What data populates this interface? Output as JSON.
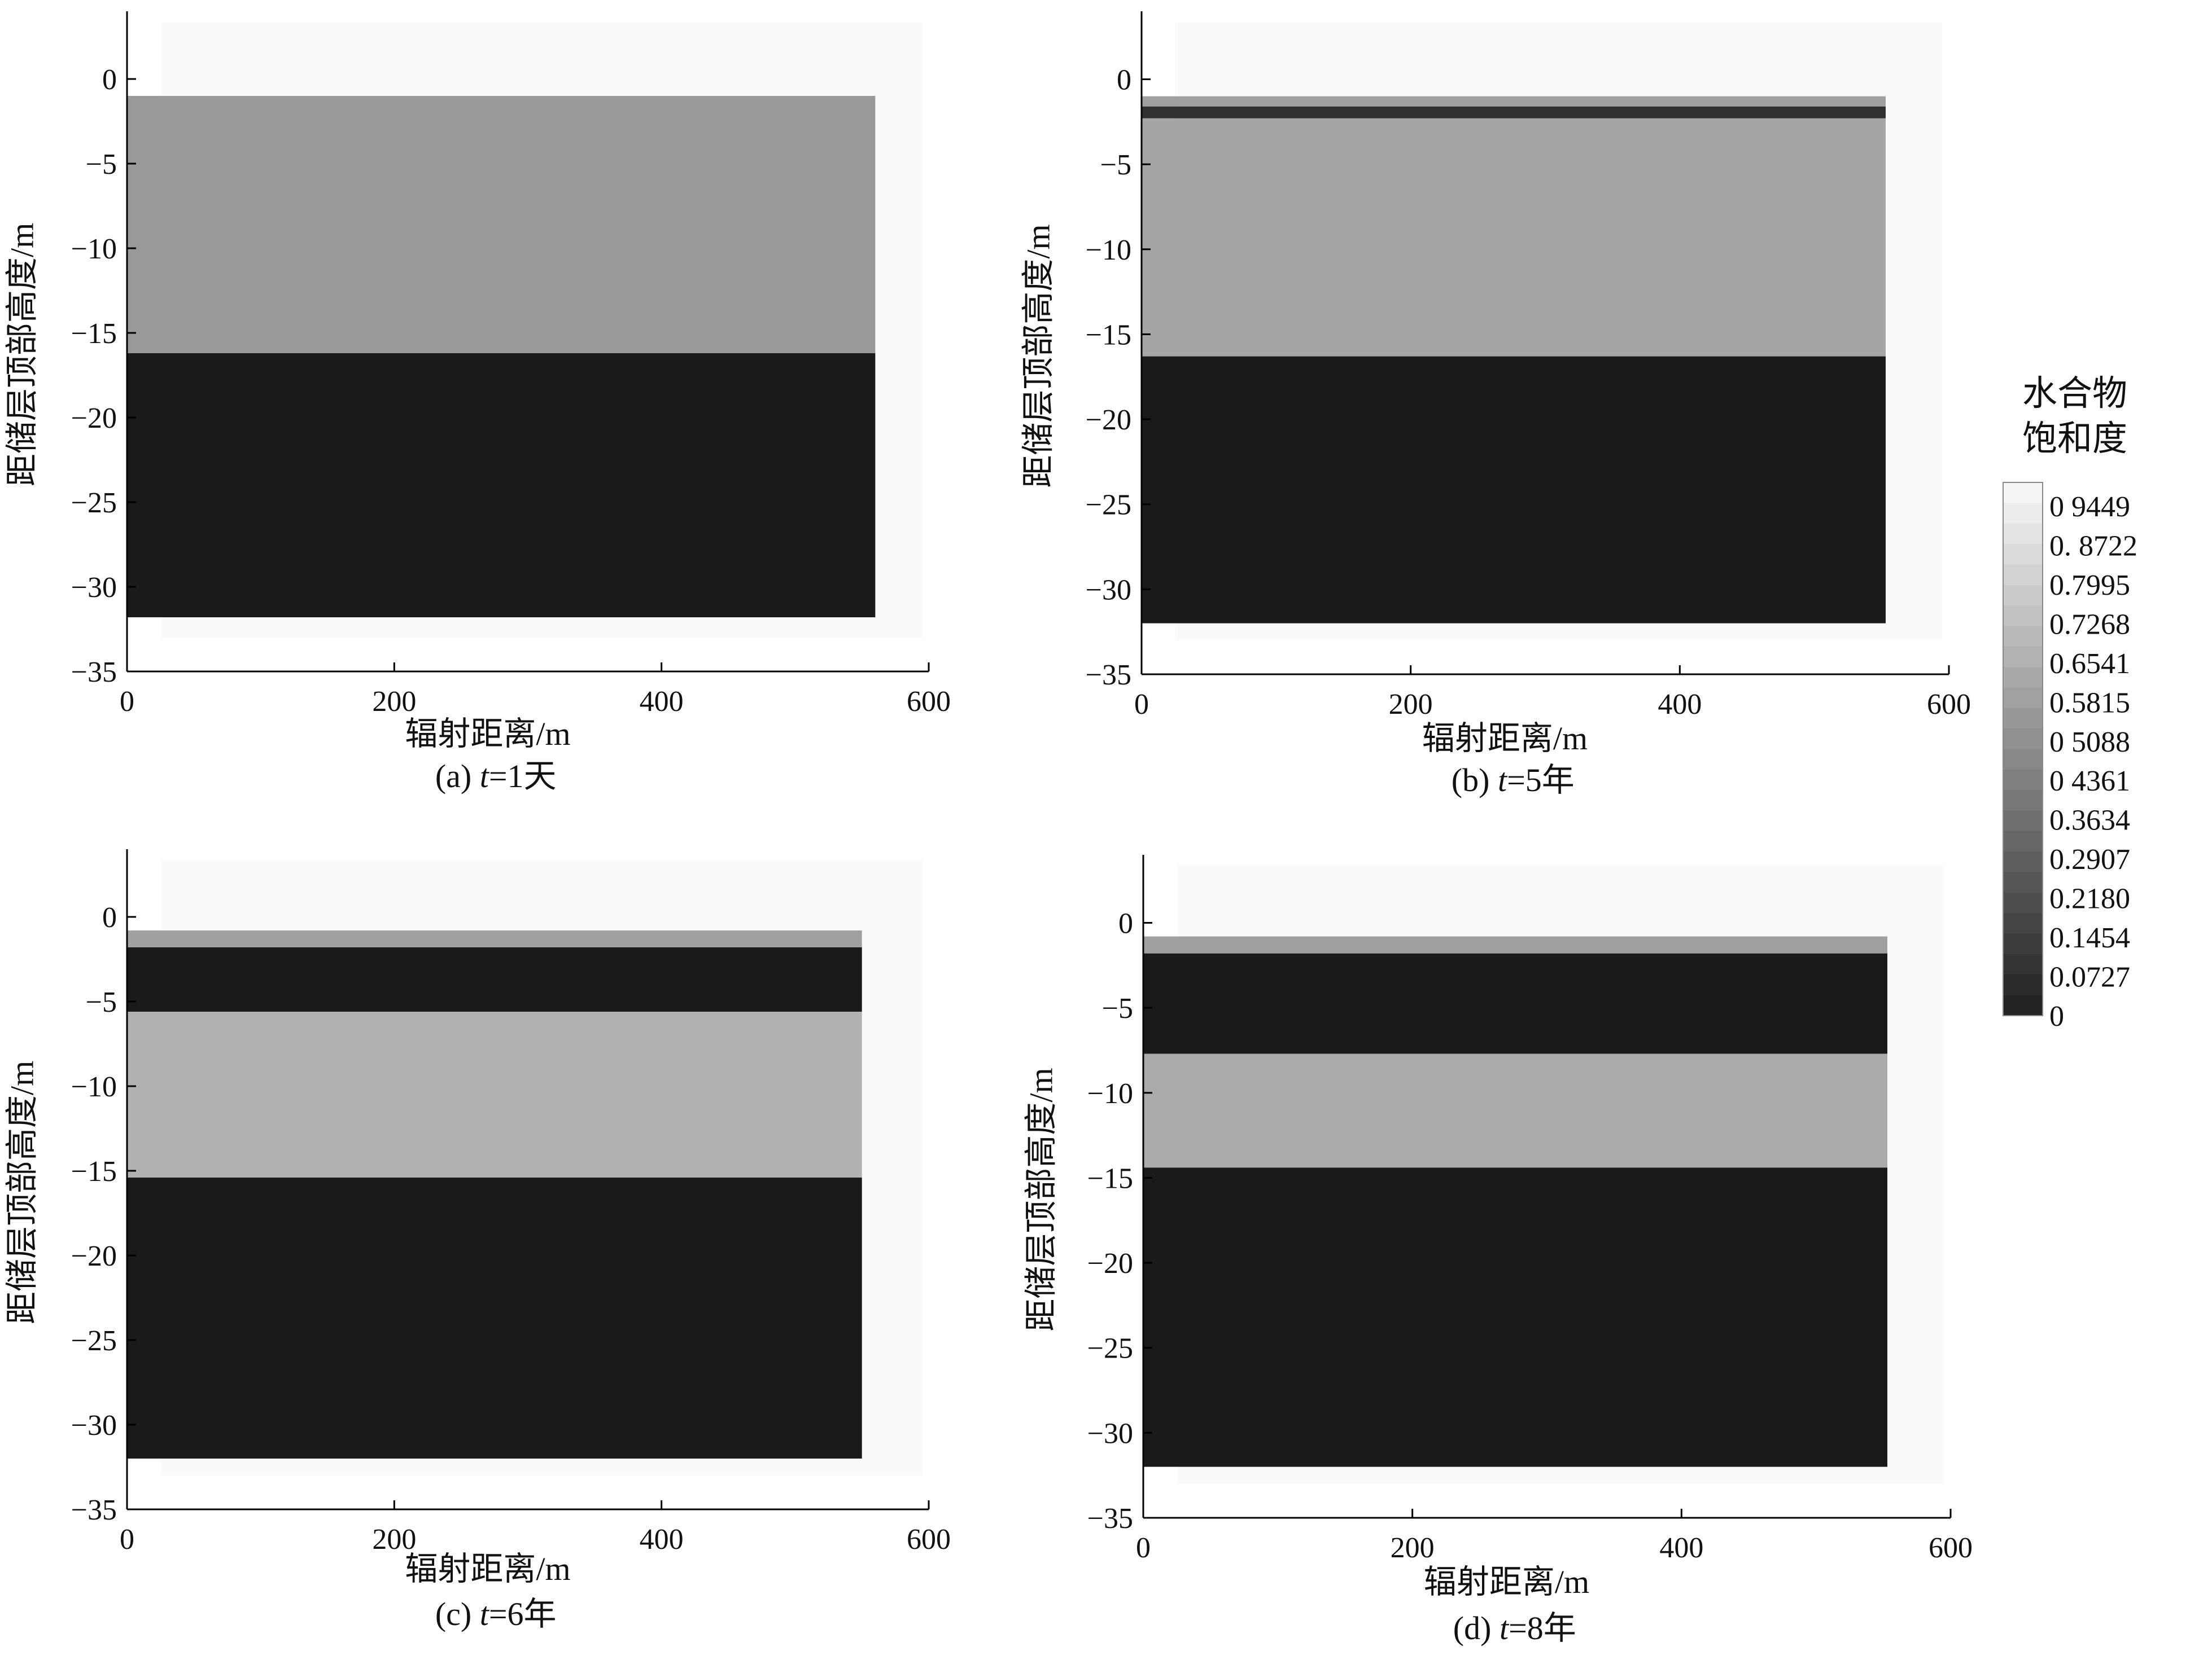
{
  "figure": {
    "colorbar": {
      "title_lines": [
        "水合物",
        "饱和度"
      ],
      "tick_labels": [
        "0 9449",
        "0. 8722",
        "0.7995",
        "0.7268",
        "0.6541",
        "0.5815",
        "0 5088",
        "0 4361",
        "0.3634",
        "0.2907",
        "0.2180",
        "0.1454",
        "0.0727",
        "0"
      ],
      "min": 0,
      "max": 0.9449,
      "colormap": "grayscale (black = 0, white = max)"
    }
  },
  "chart_data": [
    {
      "type": "heatmap",
      "panel": "a",
      "caption_prefix": "(a) ",
      "caption_var": "t",
      "caption_suffix": "=1天",
      "xlabel": "辐射距离/m",
      "ylabel": "距储层顶部高度/m",
      "xlim": [
        0,
        600
      ],
      "ylim": [
        -35,
        4
      ],
      "xticks": [
        0,
        200,
        400,
        600
      ],
      "yticks": [
        0,
        -5,
        -10,
        -15,
        -20,
        -25,
        -30,
        -35
      ],
      "domain_x": [
        0,
        560
      ],
      "bands": [
        {
          "y_top": -1.0,
          "y_bottom": -16.2,
          "saturation": 0.55
        },
        {
          "y_top": -16.2,
          "y_bottom": -31.8,
          "saturation": 0.0
        }
      ]
    },
    {
      "type": "heatmap",
      "panel": "b",
      "caption_prefix": "(b) ",
      "caption_var": "t",
      "caption_suffix": "=5年",
      "xlabel": "辐射距离/m",
      "ylabel": "距储层顶部高度/m",
      "xlim": [
        0,
        600
      ],
      "ylim": [
        -35,
        4
      ],
      "xticks": [
        0,
        200,
        400,
        600
      ],
      "yticks": [
        0,
        -5,
        -10,
        -15,
        -20,
        -25,
        -30,
        -35
      ],
      "domain_x": [
        0,
        553
      ],
      "bands": [
        {
          "y_top": -1.0,
          "y_bottom": -1.6,
          "saturation": 0.58
        },
        {
          "y_top": -1.6,
          "y_bottom": -2.3,
          "saturation": 0.1
        },
        {
          "y_top": -2.3,
          "y_bottom": -16.3,
          "saturation": 0.6
        },
        {
          "y_top": -16.3,
          "y_bottom": -32.0,
          "saturation": 0.0
        }
      ]
    },
    {
      "type": "heatmap",
      "panel": "c",
      "caption_prefix": "(c) ",
      "caption_var": "t",
      "caption_suffix": "=6年",
      "xlabel": "辐射距离/m",
      "ylabel": "距储层顶部高度/m",
      "xlim": [
        0,
        600
      ],
      "ylim": [
        -35,
        4
      ],
      "xticks": [
        0,
        200,
        400,
        600
      ],
      "yticks": [
        0,
        -5,
        -10,
        -15,
        -20,
        -25,
        -30,
        -35
      ],
      "domain_x": [
        0,
        550
      ],
      "bands": [
        {
          "y_top": -0.8,
          "y_bottom": -1.8,
          "saturation": 0.58
        },
        {
          "y_top": -1.8,
          "y_bottom": -5.6,
          "saturation": 0.0
        },
        {
          "y_top": -5.6,
          "y_bottom": -15.4,
          "saturation": 0.65
        },
        {
          "y_top": -15.4,
          "y_bottom": -32.0,
          "saturation": 0.0
        }
      ]
    },
    {
      "type": "heatmap",
      "panel": "d",
      "caption_prefix": "(d) ",
      "caption_var": "t",
      "caption_suffix": "=8年",
      "xlabel": "辐射距离/m",
      "ylabel": "距储层顶部高度/m",
      "xlim": [
        0,
        600
      ],
      "ylim": [
        -35,
        4
      ],
      "xticks": [
        0,
        200,
        400,
        600
      ],
      "yticks": [
        0,
        -5,
        -10,
        -15,
        -20,
        -25,
        -30,
        -35
      ],
      "domain_x": [
        0,
        553
      ],
      "bands": [
        {
          "y_top": -0.8,
          "y_bottom": -1.8,
          "saturation": 0.58
        },
        {
          "y_top": -1.8,
          "y_bottom": -7.7,
          "saturation": 0.0
        },
        {
          "y_top": -7.7,
          "y_bottom": -14.4,
          "saturation": 0.62
        },
        {
          "y_top": -14.4,
          "y_bottom": -32.0,
          "saturation": 0.0
        }
      ]
    }
  ]
}
